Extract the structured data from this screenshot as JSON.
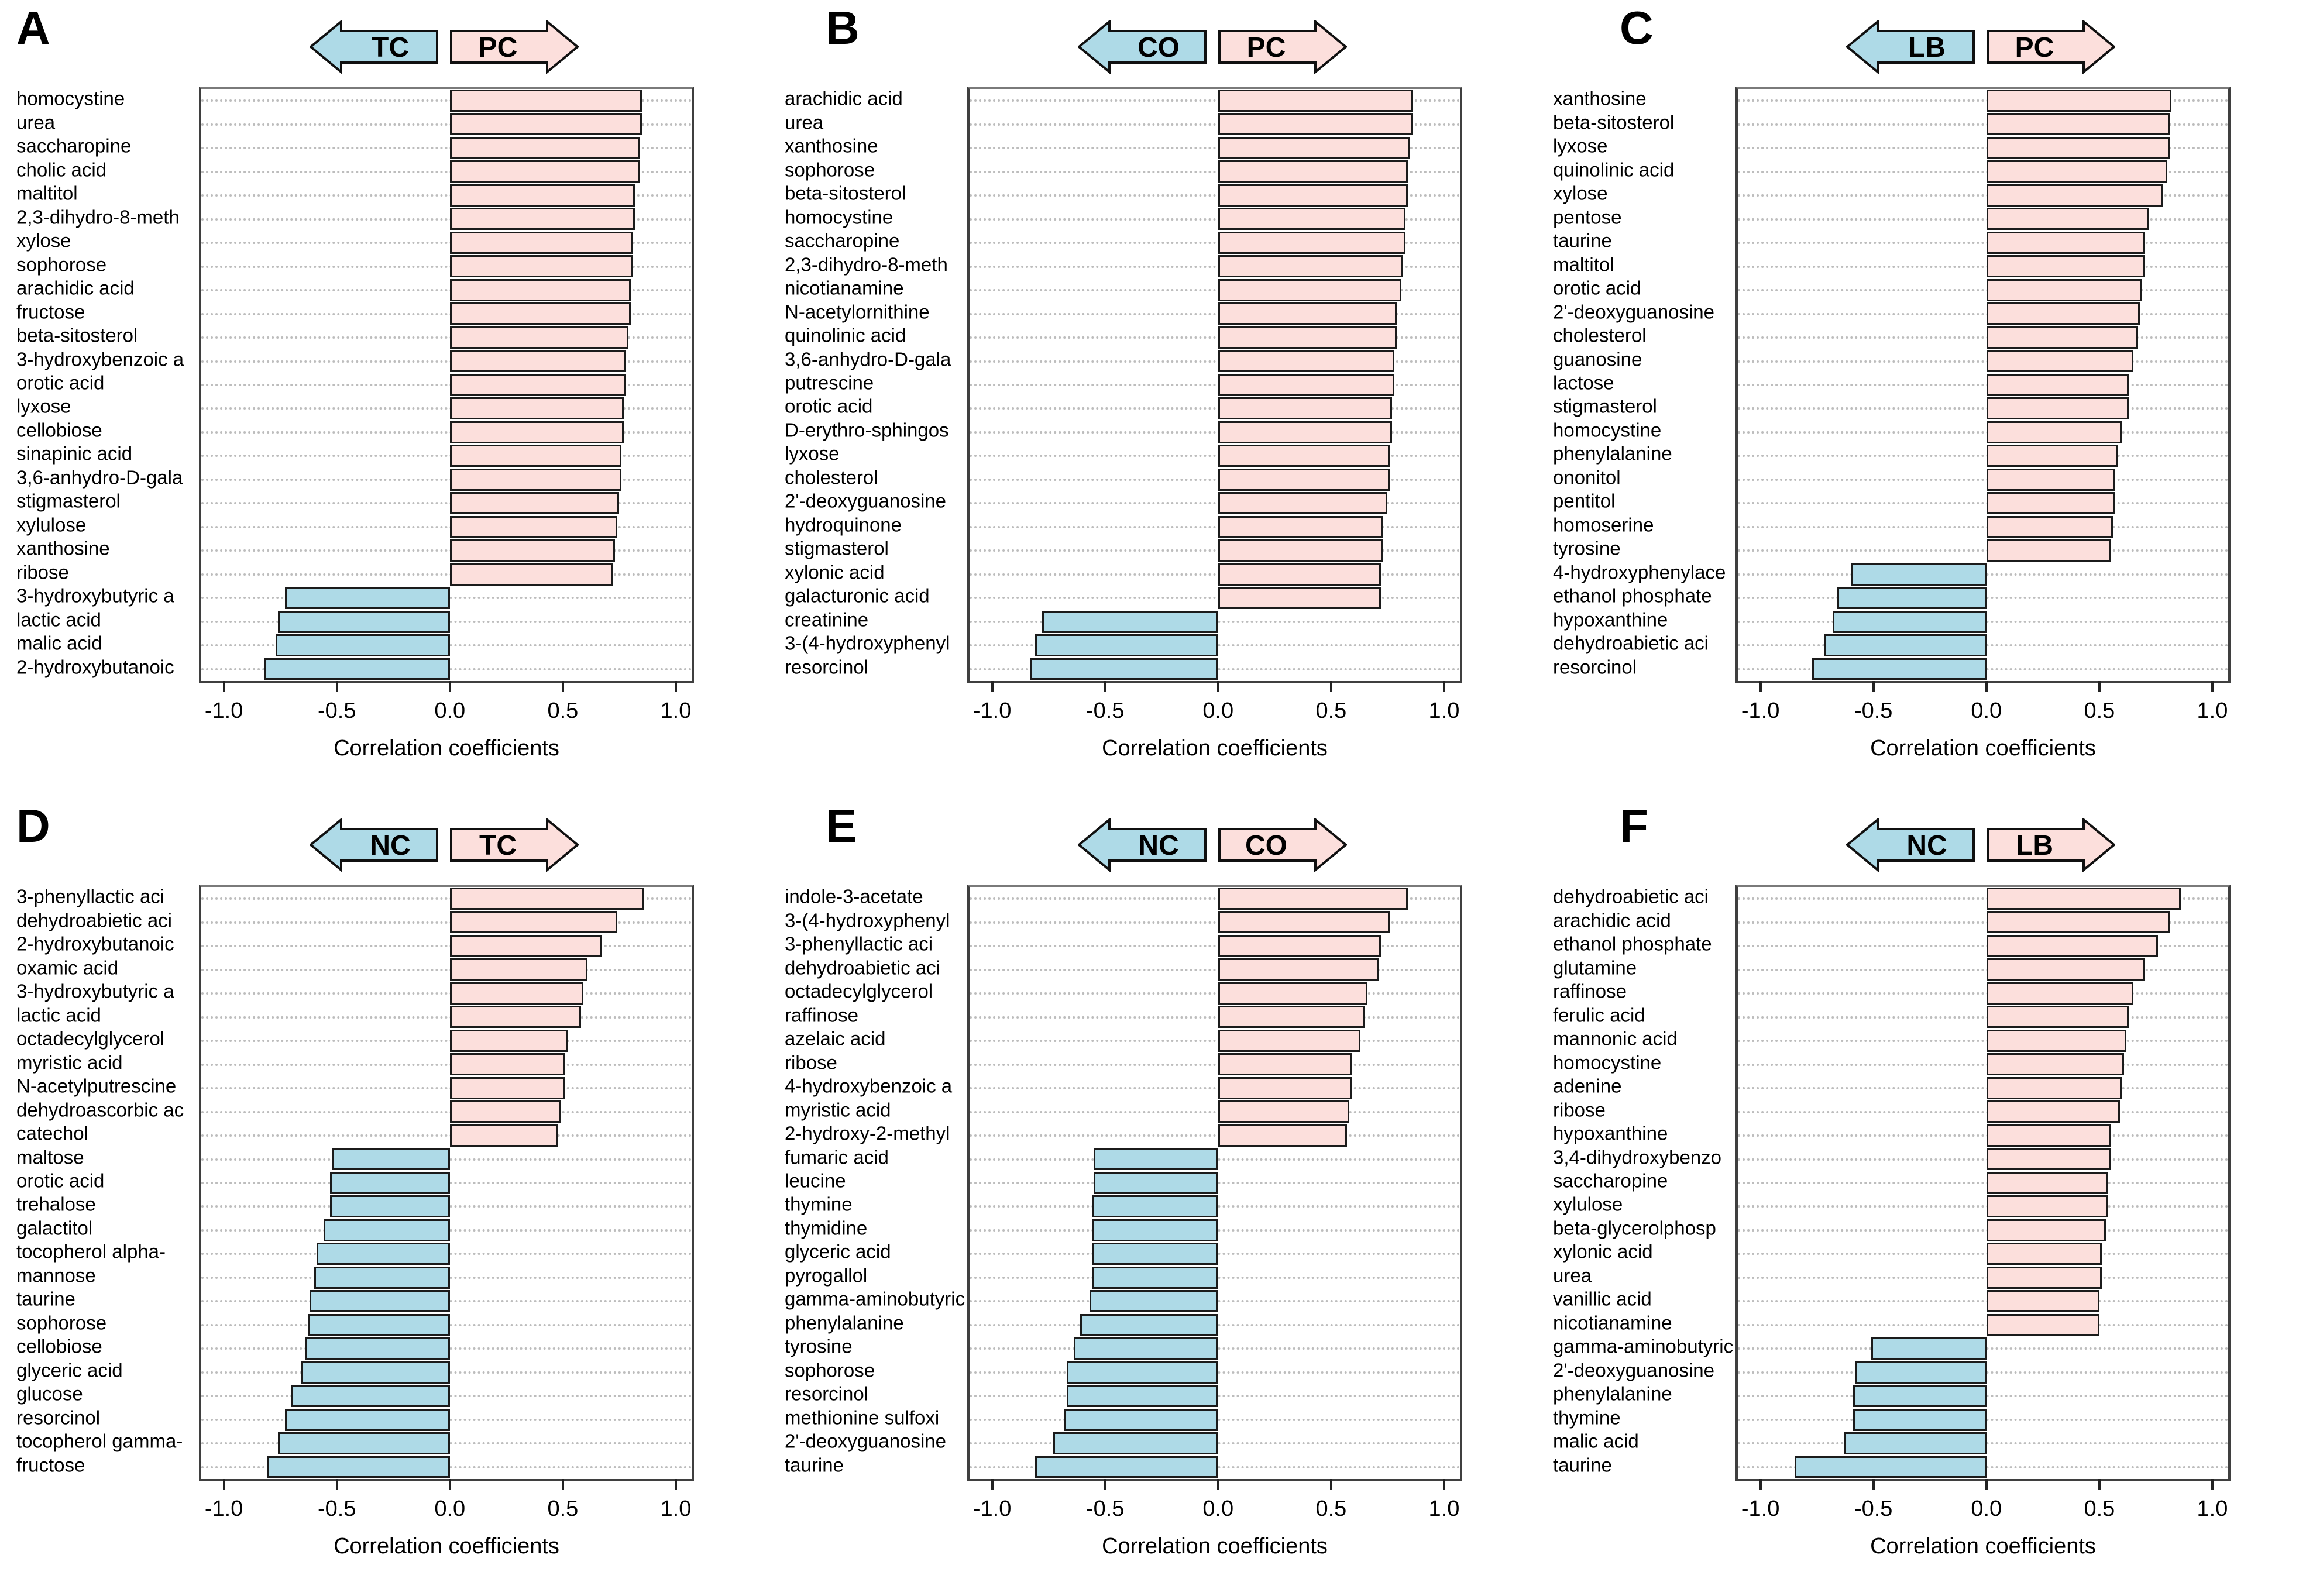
{
  "figure": {
    "xlabel": "Correlation coefficients",
    "xtick_labels": [
      "-1.0",
      "-0.5",
      "0.0",
      "0.5",
      "1.0"
    ],
    "xtick_values": [
      -1.0,
      -0.5,
      0.0,
      0.5,
      1.0
    ],
    "xlim": [
      -1.1,
      1.07
    ],
    "colors": {
      "positive_fill": "#fcdfdc",
      "negative_fill": "#aedae7",
      "bar_border": "#1b1b1b",
      "gridline": "#bdbdbd",
      "plot_border": "#3f3f3f"
    }
  },
  "chart_data": [
    {
      "panel": "A",
      "type": "bar",
      "orientation": "horizontal",
      "arrow_left": "TC",
      "arrow_right": "PC",
      "xlabel": "Correlation coefficients",
      "xlim": [
        -1.1,
        1.07
      ],
      "grid": "horizontal-dotted",
      "items": [
        {
          "name": "homocystine",
          "value": 0.85
        },
        {
          "name": "urea",
          "value": 0.85
        },
        {
          "name": "saccharopine",
          "value": 0.84
        },
        {
          "name": "cholic acid",
          "value": 0.84
        },
        {
          "name": "maltitol",
          "value": 0.82
        },
        {
          "name": "2,3-dihydro-8-meth",
          "value": 0.82
        },
        {
          "name": "xylose",
          "value": 0.81
        },
        {
          "name": "sophorose",
          "value": 0.81
        },
        {
          "name": "arachidic acid",
          "value": 0.8
        },
        {
          "name": "fructose",
          "value": 0.8
        },
        {
          "name": "beta-sitosterol",
          "value": 0.79
        },
        {
          "name": "3-hydroxybenzoic a",
          "value": 0.78
        },
        {
          "name": "orotic acid",
          "value": 0.78
        },
        {
          "name": "lyxose",
          "value": 0.77
        },
        {
          "name": "cellobiose",
          "value": 0.77
        },
        {
          "name": "sinapinic acid",
          "value": 0.76
        },
        {
          "name": "3,6-anhydro-D-gala",
          "value": 0.76
        },
        {
          "name": "stigmasterol",
          "value": 0.75
        },
        {
          "name": "xylulose",
          "value": 0.74
        },
        {
          "name": "xanthosine",
          "value": 0.73
        },
        {
          "name": "ribose",
          "value": 0.72
        },
        {
          "name": "3-hydroxybutyric a",
          "value": -0.73
        },
        {
          "name": "lactic acid",
          "value": -0.76
        },
        {
          "name": "malic acid",
          "value": -0.77
        },
        {
          "name": "2-hydroxybutanoic",
          "value": -0.82
        }
      ]
    },
    {
      "panel": "B",
      "type": "bar",
      "orientation": "horizontal",
      "arrow_left": "CO",
      "arrow_right": "PC",
      "xlabel": "Correlation coefficients",
      "xlim": [
        -1.1,
        1.07
      ],
      "grid": "horizontal-dotted",
      "items": [
        {
          "name": "arachidic acid",
          "value": 0.86
        },
        {
          "name": "urea",
          "value": 0.86
        },
        {
          "name": "xanthosine",
          "value": 0.85
        },
        {
          "name": "sophorose",
          "value": 0.84
        },
        {
          "name": "beta-sitosterol",
          "value": 0.84
        },
        {
          "name": "homocystine",
          "value": 0.83
        },
        {
          "name": "saccharopine",
          "value": 0.83
        },
        {
          "name": "2,3-dihydro-8-meth",
          "value": 0.82
        },
        {
          "name": "nicotianamine",
          "value": 0.81
        },
        {
          "name": "N-acetylornithine",
          "value": 0.79
        },
        {
          "name": "quinolinic acid",
          "value": 0.79
        },
        {
          "name": "3,6-anhydro-D-gala",
          "value": 0.78
        },
        {
          "name": "putrescine",
          "value": 0.78
        },
        {
          "name": "orotic acid",
          "value": 0.77
        },
        {
          "name": "D-erythro-sphingos",
          "value": 0.77
        },
        {
          "name": "lyxose",
          "value": 0.76
        },
        {
          "name": "cholesterol",
          "value": 0.76
        },
        {
          "name": "2'-deoxyguanosine",
          "value": 0.75
        },
        {
          "name": "hydroquinone",
          "value": 0.73
        },
        {
          "name": "stigmasterol",
          "value": 0.73
        },
        {
          "name": "xylonic acid",
          "value": 0.72
        },
        {
          "name": "galacturonic acid",
          "value": 0.72
        },
        {
          "name": "creatinine",
          "value": -0.78
        },
        {
          "name": "3-(4-hydroxyphenyl",
          "value": -0.81
        },
        {
          "name": "resorcinol",
          "value": -0.83
        }
      ]
    },
    {
      "panel": "C",
      "type": "bar",
      "orientation": "horizontal",
      "arrow_left": "LB",
      "arrow_right": "PC",
      "xlabel": "Correlation coefficients",
      "xlim": [
        -1.1,
        1.07
      ],
      "grid": "horizontal-dotted",
      "items": [
        {
          "name": "xanthosine",
          "value": 0.82
        },
        {
          "name": "beta-sitosterol",
          "value": 0.81
        },
        {
          "name": "lyxose",
          "value": 0.81
        },
        {
          "name": "quinolinic acid",
          "value": 0.8
        },
        {
          "name": "xylose",
          "value": 0.78
        },
        {
          "name": "pentose",
          "value": 0.72
        },
        {
          "name": "taurine",
          "value": 0.7
        },
        {
          "name": "maltitol",
          "value": 0.7
        },
        {
          "name": "orotic acid",
          "value": 0.69
        },
        {
          "name": "2'-deoxyguanosine",
          "value": 0.68
        },
        {
          "name": "cholesterol",
          "value": 0.67
        },
        {
          "name": "guanosine",
          "value": 0.65
        },
        {
          "name": "lactose",
          "value": 0.63
        },
        {
          "name": "stigmasterol",
          "value": 0.63
        },
        {
          "name": "homocystine",
          "value": 0.6
        },
        {
          "name": "phenylalanine",
          "value": 0.58
        },
        {
          "name": "ononitol",
          "value": 0.57
        },
        {
          "name": "pentitol",
          "value": 0.57
        },
        {
          "name": "homoserine",
          "value": 0.56
        },
        {
          "name": "tyrosine",
          "value": 0.55
        },
        {
          "name": "4-hydroxyphenylace",
          "value": -0.6
        },
        {
          "name": "ethanol phosphate",
          "value": -0.66
        },
        {
          "name": "hypoxanthine",
          "value": -0.68
        },
        {
          "name": "dehydroabietic aci",
          "value": -0.72
        },
        {
          "name": "resorcinol",
          "value": -0.77
        }
      ]
    },
    {
      "panel": "D",
      "type": "bar",
      "orientation": "horizontal",
      "arrow_left": "NC",
      "arrow_right": "TC",
      "xlabel": "Correlation coefficients",
      "xlim": [
        -1.1,
        1.07
      ],
      "grid": "horizontal-dotted",
      "items": [
        {
          "name": "3-phenyllactic aci",
          "value": 0.86
        },
        {
          "name": "dehydroabietic aci",
          "value": 0.74
        },
        {
          "name": "2-hydroxybutanoic",
          "value": 0.67
        },
        {
          "name": "oxamic acid",
          "value": 0.61
        },
        {
          "name": "3-hydroxybutyric a",
          "value": 0.59
        },
        {
          "name": "lactic acid",
          "value": 0.58
        },
        {
          "name": "octadecylglycerol",
          "value": 0.52
        },
        {
          "name": "myristic acid",
          "value": 0.51
        },
        {
          "name": "N-acetylputrescine",
          "value": 0.51
        },
        {
          "name": "dehydroascorbic ac",
          "value": 0.49
        },
        {
          "name": "catechol",
          "value": 0.48
        },
        {
          "name": "maltose",
          "value": -0.52
        },
        {
          "name": "orotic acid",
          "value": -0.53
        },
        {
          "name": "trehalose",
          "value": -0.53
        },
        {
          "name": "galactitol",
          "value": -0.56
        },
        {
          "name": "tocopherol alpha-",
          "value": -0.59
        },
        {
          "name": "mannose",
          "value": -0.6
        },
        {
          "name": "taurine",
          "value": -0.62
        },
        {
          "name": "sophorose",
          "value": -0.63
        },
        {
          "name": "cellobiose",
          "value": -0.64
        },
        {
          "name": "glyceric acid",
          "value": -0.66
        },
        {
          "name": "glucose",
          "value": -0.7
        },
        {
          "name": "resorcinol",
          "value": -0.73
        },
        {
          "name": "tocopherol gamma-",
          "value": -0.76
        },
        {
          "name": "fructose",
          "value": -0.81
        }
      ]
    },
    {
      "panel": "E",
      "type": "bar",
      "orientation": "horizontal",
      "arrow_left": "NC",
      "arrow_right": "CO",
      "xlabel": "Correlation coefficients",
      "xlim": [
        -1.1,
        1.07
      ],
      "grid": "horizontal-dotted",
      "items": [
        {
          "name": "indole-3-acetate",
          "value": 0.84
        },
        {
          "name": "3-(4-hydroxyphenyl",
          "value": 0.76
        },
        {
          "name": "3-phenyllactic aci",
          "value": 0.72
        },
        {
          "name": "dehydroabietic aci",
          "value": 0.71
        },
        {
          "name": "octadecylglycerol",
          "value": 0.66
        },
        {
          "name": "raffinose",
          "value": 0.65
        },
        {
          "name": "azelaic acid",
          "value": 0.63
        },
        {
          "name": "ribose",
          "value": 0.59
        },
        {
          "name": "4-hydroxybenzoic a",
          "value": 0.59
        },
        {
          "name": "myristic acid",
          "value": 0.58
        },
        {
          "name": "2-hydroxy-2-methyl",
          "value": 0.57
        },
        {
          "name": "fumaric acid",
          "value": -0.55
        },
        {
          "name": "leucine",
          "value": -0.55
        },
        {
          "name": "thymine",
          "value": -0.56
        },
        {
          "name": "thymidine",
          "value": -0.56
        },
        {
          "name": "glyceric acid",
          "value": -0.56
        },
        {
          "name": "pyrogallol",
          "value": -0.56
        },
        {
          "name": "gamma-aminobutyric",
          "value": -0.57
        },
        {
          "name": "phenylalanine",
          "value": -0.61
        },
        {
          "name": "tyrosine",
          "value": -0.64
        },
        {
          "name": "sophorose",
          "value": -0.67
        },
        {
          "name": "resorcinol",
          "value": -0.67
        },
        {
          "name": "methionine sulfoxi",
          "value": -0.68
        },
        {
          "name": "2'-deoxyguanosine",
          "value": -0.73
        },
        {
          "name": "taurine",
          "value": -0.81
        }
      ]
    },
    {
      "panel": "F",
      "type": "bar",
      "orientation": "horizontal",
      "arrow_left": "NC",
      "arrow_right": "LB",
      "xlabel": "Correlation coefficients",
      "xlim": [
        -1.1,
        1.07
      ],
      "grid": "horizontal-dotted",
      "items": [
        {
          "name": "dehydroabietic aci",
          "value": 0.86
        },
        {
          "name": "arachidic acid",
          "value": 0.81
        },
        {
          "name": "ethanol phosphate",
          "value": 0.76
        },
        {
          "name": "glutamine",
          "value": 0.7
        },
        {
          "name": "raffinose",
          "value": 0.65
        },
        {
          "name": "ferulic acid",
          "value": 0.63
        },
        {
          "name": "mannonic acid",
          "value": 0.62
        },
        {
          "name": "homocystine",
          "value": 0.61
        },
        {
          "name": "adenine",
          "value": 0.6
        },
        {
          "name": "ribose",
          "value": 0.59
        },
        {
          "name": "hypoxanthine",
          "value": 0.55
        },
        {
          "name": "3,4-dihydroxybenzo",
          "value": 0.55
        },
        {
          "name": "saccharopine",
          "value": 0.54
        },
        {
          "name": "xylulose",
          "value": 0.54
        },
        {
          "name": "beta-glycerolphosp",
          "value": 0.53
        },
        {
          "name": "xylonic acid",
          "value": 0.51
        },
        {
          "name": "urea",
          "value": 0.51
        },
        {
          "name": "vanillic acid",
          "value": 0.5
        },
        {
          "name": "nicotianamine",
          "value": 0.5
        },
        {
          "name": "gamma-aminobutyric",
          "value": -0.51
        },
        {
          "name": "2'-deoxyguanosine",
          "value": -0.58
        },
        {
          "name": "phenylalanine",
          "value": -0.59
        },
        {
          "name": "thymine",
          "value": -0.59
        },
        {
          "name": "malic acid",
          "value": -0.63
        },
        {
          "name": "taurine",
          "value": -0.85
        }
      ]
    }
  ]
}
